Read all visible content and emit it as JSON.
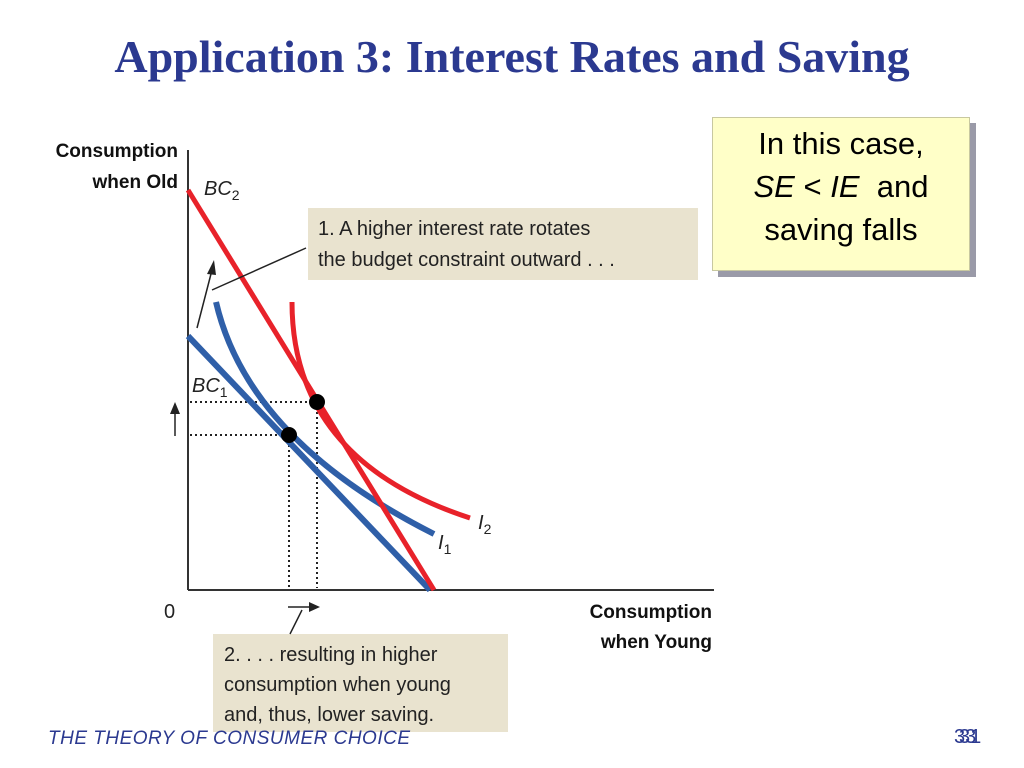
{
  "slide": {
    "title": "Application 3:  Interest Rates and Saving",
    "footer_text": "THE THEORY OF CONSUMER CHOICE",
    "page_number_back": "33",
    "page_number_front": "31"
  },
  "callout": {
    "line1": "In this case,",
    "se": "SE",
    "lt": "<",
    "ie": "IE",
    "and": "and",
    "line3": "saving falls"
  },
  "diagram": {
    "y_axis_label_line1": "Consumption",
    "y_axis_label_line2": "when Old",
    "x_axis_label_line1": "Consumption",
    "x_axis_label_line2": "when Young",
    "origin_label": "0",
    "bc2_label": "BC",
    "bc2_sub": "2",
    "bc1_label": "BC",
    "bc1_sub": "1",
    "i1_label": "I",
    "i1_sub": "1",
    "i2_label": "I",
    "i2_sub": "2",
    "note1_line1": "1. A higher interest rate rotates",
    "note1_line2": "the budget constraint outward . . .",
    "note2_line1": "2. . . . resulting in higher",
    "note2_line2": "consumption when young",
    "note2_line3": "and, thus, lower saving.",
    "colors": {
      "new_lines": "#e8222a",
      "old_lines": "#2f5fa8",
      "note_box": "#e9e3cf",
      "axis": "#333333"
    }
  }
}
